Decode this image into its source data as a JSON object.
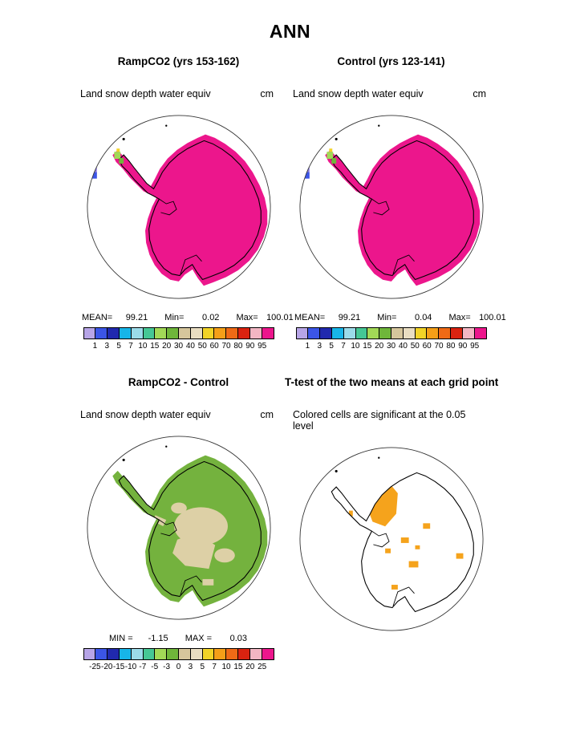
{
  "title": "ANN",
  "colors": {
    "snow": "#ec168c",
    "diff_green": "#74b23e",
    "diff_tan": "#ddd0a6",
    "ttest_orange": "#f5a31c",
    "cell_purple": "#8a7ae0",
    "cell_blue": "#3b55e6",
    "cell_green_light": "#a2d957",
    "cell_green": "#6fb63a",
    "cell_yellow": "#f2d327"
  },
  "colorbar": {
    "colors": [
      "#b7a5e7",
      "#3b55e6",
      "#2029ae",
      "#17b5e8",
      "#9bdbe9",
      "#45c795",
      "#a2d957",
      "#6fb63a",
      "#d6c69c",
      "#e9ddc1",
      "#f2d327",
      "#f59f18",
      "#ef6a16",
      "#da2310",
      "#f3b6c3",
      "#ec168c"
    ]
  },
  "panels": [
    {
      "id": "rampco2",
      "title": "RampCO2 (yrs 153-162)",
      "subtitle": "Land snow depth water equiv",
      "units": "cm",
      "stats": {
        "mean_label": "MEAN=",
        "mean": "99.21",
        "min_label": "Min=",
        "min": "0.02",
        "max_label": "Max=",
        "max": "100.01"
      },
      "ticks": [
        "1",
        "3",
        "5",
        "7",
        "10",
        "15",
        "20",
        "30",
        "40",
        "50",
        "60",
        "70",
        "80",
        "90",
        "95"
      ]
    },
    {
      "id": "control",
      "title": "Control (yrs 123-141)",
      "subtitle": "Land snow depth water equiv",
      "units": "cm",
      "stats": {
        "mean_label": "MEAN=",
        "mean": "99.21",
        "min_label": "Min=",
        "min": "0.04",
        "max_label": "Max=",
        "max": "100.01"
      },
      "ticks": [
        "1",
        "3",
        "5",
        "7",
        "10",
        "15",
        "20",
        "30",
        "40",
        "50",
        "60",
        "70",
        "80",
        "90",
        "95"
      ]
    },
    {
      "id": "difference",
      "title": "RampCO2 - Control",
      "subtitle": "Land snow depth water equiv",
      "units": "cm",
      "stats": {
        "min_label": "MIN =",
        "min": "-1.15",
        "max_label": "MAX =",
        "max": "0.03"
      },
      "ticks": [
        "-25",
        "-20",
        "-15",
        "-10",
        "-7",
        "-5",
        "-3",
        "0",
        "3",
        "5",
        "7",
        "10",
        "15",
        "20",
        "25"
      ]
    },
    {
      "id": "ttest",
      "title": "T-test of the two means at each grid point",
      "subtitle": "Colored cells are significant at the 0.05 level"
    }
  ],
  "chart_data": [
    {
      "type": "heatmap",
      "title": "RampCO2 (yrs 153-162)",
      "subtitle": "Land snow depth water equiv",
      "units": "cm",
      "projection": "south polar stereographic",
      "stats": {
        "mean": 99.21,
        "min": 0.02,
        "max": 100.01
      },
      "levels": [
        1,
        3,
        5,
        7,
        10,
        15,
        20,
        30,
        40,
        50,
        60,
        70,
        80,
        90,
        95
      ],
      "palette": [
        "#b7a5e7",
        "#3b55e6",
        "#2029ae",
        "#17b5e8",
        "#9bdbe9",
        "#45c795",
        "#a2d957",
        "#6fb63a",
        "#d6c69c",
        "#e9ddc1",
        "#f2d327",
        "#f59f18",
        "#ef6a16",
        "#da2310",
        "#f3b6c3",
        "#ec168c"
      ],
      "dominant_bin": "> 95 (magenta) over nearly all of Antarctica; small low-value cells near the peninsula"
    },
    {
      "type": "heatmap",
      "title": "Control (yrs 123-141)",
      "subtitle": "Land snow depth water equiv",
      "units": "cm",
      "projection": "south polar stereographic",
      "stats": {
        "mean": 99.21,
        "min": 0.04,
        "max": 100.01
      },
      "levels": [
        1,
        3,
        5,
        7,
        10,
        15,
        20,
        30,
        40,
        50,
        60,
        70,
        80,
        90,
        95
      ],
      "dominant_bin": "> 95 (magenta) over nearly all of Antarctica; small low-value cells near the peninsula"
    },
    {
      "type": "heatmap",
      "title": "RampCO2 - Control",
      "subtitle": "Land snow depth water equiv",
      "units": "cm",
      "projection": "south polar stereographic",
      "stats": {
        "min": -1.15,
        "max": 0.03
      },
      "levels": [
        -25,
        -20,
        -15,
        -10,
        -7,
        -5,
        -3,
        0,
        3,
        5,
        7,
        10,
        15,
        20,
        25
      ],
      "dominant_bin": "-3 to 0 (green) over most of continent with 0 to 3 (tan) interior patches"
    },
    {
      "type": "heatmap",
      "title": "T-test of the two means at each grid point",
      "subtitle": "Colored cells are significant at the 0.05 level",
      "projection": "south polar stereographic",
      "significant_color": "#f5a31c",
      "dominant_bin": "scattered significant (orange) cells, largest cluster north-central interior"
    }
  ]
}
